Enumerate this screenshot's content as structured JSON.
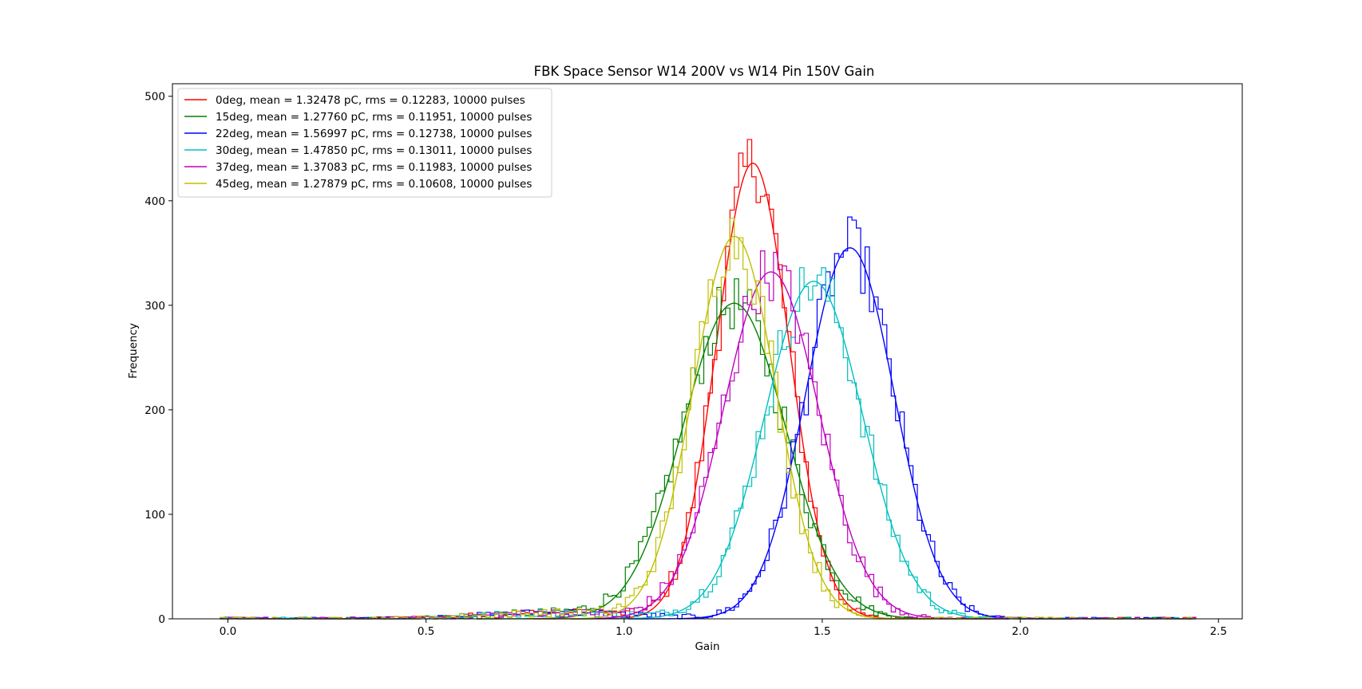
{
  "chart_data": {
    "type": "histogram",
    "title": "FBK Space Sensor W14 200V vs W14 Pin 150V Gain",
    "xlabel": "Gain",
    "ylabel": "Frequency",
    "xlim": [
      -0.14,
      2.56
    ],
    "ylim": [
      0,
      512
    ],
    "xticks": [
      0.0,
      0.5,
      1.0,
      1.5,
      2.0,
      2.5
    ],
    "yticks": [
      0,
      100,
      200,
      300,
      400,
      500
    ],
    "xtick_labels": [
      "0.0",
      "0.5",
      "1.0",
      "1.5",
      "2.0",
      "2.5"
    ],
    "ytick_labels": [
      "0",
      "100",
      "200",
      "300",
      "400",
      "500"
    ],
    "grid": false,
    "legend_position": "top-left",
    "series": [
      {
        "name": "0deg, mean = 1.32478 pC, rms = 0.12283, 10000 pulses",
        "color": "#ff0000",
        "fit_mean": 1.32478,
        "fit_sigma": 0.0915,
        "fit_peak": 436,
        "hist_peak": 488
      },
      {
        "name": "15deg, mean = 1.27760 pC, rms = 0.11951, 10000 pulses",
        "color": "#008000",
        "fit_mean": 1.2776,
        "fit_sigma": 0.13,
        "fit_peak": 302,
        "hist_peak": 330
      },
      {
        "name": "22deg, mean = 1.56997 pC, rms = 0.12738, 10000 pulses",
        "color": "#0000ff",
        "fit_mean": 1.56997,
        "fit_sigma": 0.112,
        "fit_peak": 355,
        "hist_peak": 376
      },
      {
        "name": "30deg, mean = 1.47850 pC, rms = 0.13011, 10000 pulses",
        "color": "#00bfbf",
        "fit_mean": 1.4785,
        "fit_sigma": 0.123,
        "fit_peak": 323,
        "hist_peak": 344
      },
      {
        "name": "37deg, mean = 1.37083 pC, rms = 0.11983, 10000 pulses",
        "color": "#bf00bf",
        "fit_mean": 1.37083,
        "fit_sigma": 0.12,
        "fit_peak": 332,
        "hist_peak": 362
      },
      {
        "name": "45deg, mean = 1.27879 pC, rms = 0.10608, 10000 pulses",
        "color": "#bfbf00",
        "fit_mean": 1.27879,
        "fit_sigma": 0.104,
        "fit_peak": 366,
        "hist_peak": 384
      }
    ]
  }
}
